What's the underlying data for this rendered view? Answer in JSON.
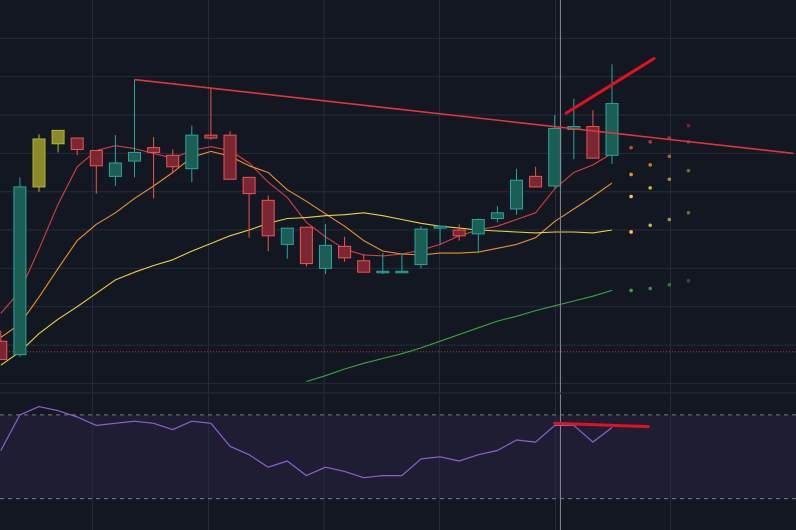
{
  "colors": {
    "background": "#131722",
    "oscillator_band": "#1f1d33",
    "grid": "#262b3a",
    "bull_body": "#1b5e55",
    "bull_border": "#26a69a",
    "bear_body": "#7a2733",
    "bear_border": "#ef5350",
    "highlight_body": "#8a8a28",
    "highlight_border": "#b3b336",
    "ma_fast": "#d93c4a",
    "ma_mid": "#e8912a",
    "ma_slow": "#e6d43c",
    "ma_long": "#3fa04a",
    "trendline": "#e0353f",
    "divergence": "#e3101e",
    "oscillator_line": "#8a63c9",
    "crosshair": "#868993",
    "reference_dotted": "#b33a3a"
  },
  "chart_data": [
    {
      "type": "candlestick",
      "title": "",
      "xlabel": "",
      "ylabel": "",
      "grid": true,
      "legend": "none",
      "x": [
        0,
        1,
        2,
        3,
        4,
        5,
        6,
        7,
        8,
        9,
        10,
        11,
        12,
        13,
        14,
        15,
        16,
        17,
        18,
        19,
        20,
        21,
        22,
        23,
        24,
        25,
        26,
        27,
        28,
        29,
        30,
        31,
        32
      ],
      "ylim": [
        71,
        112
      ],
      "candles": [
        {
          "o": 76.4,
          "h": 77.5,
          "l": 74.8,
          "c": 74.5,
          "style": "bear"
        },
        {
          "o": 75.0,
          "h": 93.5,
          "l": 74.8,
          "c": 92.5,
          "style": "bull"
        },
        {
          "o": 92.5,
          "h": 98.0,
          "l": 92.0,
          "c": 97.5,
          "style": "highlight"
        },
        {
          "o": 97.0,
          "h": 98.4,
          "l": 96.1,
          "c": 98.4,
          "style": "highlight"
        },
        {
          "o": 97.6,
          "h": 97.6,
          "l": 95.8,
          "c": 96.4,
          "style": "bear"
        },
        {
          "o": 96.3,
          "h": 96.3,
          "l": 91.8,
          "c": 94.7,
          "style": "bear"
        },
        {
          "o": 93.6,
          "h": 97.9,
          "l": 92.6,
          "c": 95.0,
          "style": "bull"
        },
        {
          "o": 95.2,
          "h": 103.7,
          "l": 93.5,
          "c": 96.1,
          "style": "bull"
        },
        {
          "o": 96.6,
          "h": 97.7,
          "l": 91.3,
          "c": 96.1,
          "style": "bear"
        },
        {
          "o": 95.8,
          "h": 96.4,
          "l": 93.9,
          "c": 94.6,
          "style": "bear"
        },
        {
          "o": 94.4,
          "h": 98.9,
          "l": 93.0,
          "c": 97.9,
          "style": "bull"
        },
        {
          "o": 97.9,
          "h": 102.7,
          "l": 97.4,
          "c": 97.6,
          "style": "bear"
        },
        {
          "o": 97.9,
          "h": 98.3,
          "l": 93.3,
          "c": 93.3,
          "style": "bear"
        },
        {
          "o": 93.5,
          "h": 93.5,
          "l": 87.2,
          "c": 91.8,
          "style": "bear"
        },
        {
          "o": 91.1,
          "h": 91.6,
          "l": 85.8,
          "c": 87.4,
          "style": "bear"
        },
        {
          "o": 86.5,
          "h": 88.0,
          "l": 85.0,
          "c": 88.2,
          "style": "bull"
        },
        {
          "o": 88.3,
          "h": 88.3,
          "l": 84.2,
          "c": 84.5,
          "style": "bear"
        },
        {
          "o": 84.0,
          "h": 88.6,
          "l": 83.4,
          "c": 86.4,
          "style": "bull"
        },
        {
          "o": 86.3,
          "h": 87.3,
          "l": 84.7,
          "c": 85.1,
          "style": "bear"
        },
        {
          "o": 84.8,
          "h": 85.5,
          "l": 83.8,
          "c": 83.6,
          "style": "bear"
        },
        {
          "o": 83.7,
          "h": 85.6,
          "l": 83.4,
          "c": 83.7,
          "style": "bull"
        },
        {
          "o": 83.7,
          "h": 85.6,
          "l": 83.6,
          "c": 83.7,
          "style": "bull"
        },
        {
          "o": 84.4,
          "h": 88.4,
          "l": 84.0,
          "c": 88.1,
          "style": "bull"
        },
        {
          "o": 88.2,
          "h": 88.4,
          "l": 86.5,
          "c": 88.4,
          "style": "bull"
        },
        {
          "o": 88.0,
          "h": 88.6,
          "l": 86.9,
          "c": 87.4,
          "style": "bear"
        },
        {
          "o": 87.6,
          "h": 89.2,
          "l": 85.6,
          "c": 89.1,
          "style": "bull"
        },
        {
          "o": 89.2,
          "h": 90.5,
          "l": 88.8,
          "c": 89.8,
          "style": "bull"
        },
        {
          "o": 90.2,
          "h": 94.4,
          "l": 89.6,
          "c": 93.2,
          "style": "bull"
        },
        {
          "o": 93.6,
          "h": 94.6,
          "l": 92.6,
          "c": 92.5,
          "style": "bear"
        },
        {
          "o": 92.6,
          "h": 100.0,
          "l": 92.4,
          "c": 98.6,
          "style": "bull"
        },
        {
          "o": 98.5,
          "h": 101.7,
          "l": 95.4,
          "c": 98.8,
          "style": "bull"
        },
        {
          "o": 98.8,
          "h": 100.5,
          "l": 95.5,
          "c": 95.5,
          "style": "bear"
        },
        {
          "o": 95.8,
          "h": 105.3,
          "l": 94.9,
          "c": 101.2,
          "style": "bull"
        }
      ],
      "moving_averages": [
        {
          "style": "ma_fast",
          "values": [
            79.3,
            81.6,
            86.0,
            90.7,
            94.6,
            96.3,
            96.8,
            96.5,
            96.0,
            95.5,
            96.3,
            96.7,
            96.3,
            95.0,
            93.0,
            91.4,
            88.8,
            87.3,
            86.0,
            85.4,
            85.3,
            85.5,
            85.9,
            86.5,
            87.4,
            88.0,
            88.4,
            89.1,
            89.8,
            92.3,
            94.0,
            94.8,
            96.0
          ]
        },
        {
          "style": "ma_mid",
          "values": [
            76.8,
            78.2,
            81.0,
            84.0,
            86.9,
            88.6,
            89.8,
            91.3,
            92.6,
            94.0,
            95.6,
            96.2,
            95.7,
            94.7,
            94.0,
            92.2,
            91.0,
            89.7,
            88.4,
            86.9,
            85.8,
            85.5,
            85.4,
            85.6,
            85.6,
            85.7,
            86.1,
            86.5,
            87.2,
            88.9,
            90.2,
            91.5,
            92.9
          ]
        },
        {
          "style": "ma_slow",
          "values": [
            73.9,
            75.3,
            77.2,
            78.7,
            80.0,
            81.4,
            82.8,
            83.6,
            84.3,
            84.9,
            85.8,
            86.6,
            87.4,
            88.0,
            88.7,
            89.2,
            89.3,
            89.5,
            89.6,
            89.8,
            89.5,
            89.1,
            88.7,
            88.4,
            88.2,
            88.0,
            87.9,
            87.8,
            87.7,
            87.8,
            87.8,
            87.7,
            88.0
          ]
        },
        {
          "style": "ma_long",
          "values": [
            null,
            null,
            null,
            null,
            null,
            null,
            null,
            null,
            null,
            null,
            null,
            null,
            null,
            null,
            null,
            null,
            72.2,
            72.8,
            73.5,
            74.1,
            74.6,
            75.1,
            75.7,
            76.4,
            77.1,
            77.8,
            78.5,
            79.0,
            79.6,
            80.1,
            80.6,
            81.1,
            81.7
          ]
        }
      ],
      "projection_markers": [
        {
          "x": 33,
          "values": [
            96.6,
            93.8,
            91.5,
            87.8,
            81.7
          ]
        },
        {
          "x": 34,
          "values": [
            97.2,
            94.8,
            92.4,
            88.5,
            81.9
          ]
        },
        {
          "x": 35,
          "values": [
            97.6,
            95.7,
            93.3,
            89.1,
            82.3
          ]
        },
        {
          "x": 36,
          "values": [
            98.9,
            97.2,
            94.2,
            89.8,
            82.7
          ]
        }
      ],
      "trendline": {
        "from": {
          "x": 7,
          "y": 103.7
        },
        "to": {
          "x": 41.5,
          "y": 96.0
        }
      },
      "divergence_line": {
        "from": {
          "x": 29.6,
          "y": 100.2
        },
        "to": {
          "x": 34.2,
          "y": 105.9
        }
      },
      "crosshair_x": 29.3,
      "reference_level": 75.3
    },
    {
      "type": "line",
      "title": "",
      "xlabel": "",
      "ylabel": "",
      "grid": true,
      "legend": "none",
      "x": [
        0,
        1,
        2,
        3,
        4,
        5,
        6,
        7,
        8,
        9,
        10,
        11,
        12,
        13,
        14,
        15,
        16,
        17,
        18,
        19,
        20,
        21,
        22,
        23,
        24,
        25,
        26,
        27,
        28,
        29,
        30,
        31,
        32
      ],
      "ylim": [
        15,
        80
      ],
      "band": [
        30,
        70
      ],
      "series": [
        {
          "values": [
            53,
            70,
            74,
            72,
            69,
            65,
            66,
            67,
            66,
            63,
            67,
            66,
            55,
            51,
            45,
            48,
            41,
            45,
            43,
            40,
            41,
            41,
            49,
            50,
            48,
            51,
            53,
            58,
            57,
            65,
            65,
            57,
            64
          ]
        }
      ],
      "divergence_line": {
        "from": {
          "x": 29.0,
          "y": 66.0
        },
        "to": {
          "x": 33.9,
          "y": 64.4
        }
      }
    }
  ]
}
